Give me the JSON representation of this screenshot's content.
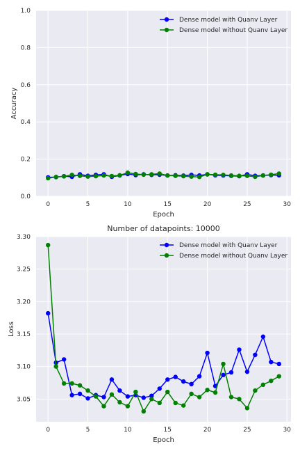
{
  "chart_data": [
    {
      "type": "line",
      "title": "",
      "xlabel": "Epoch",
      "ylabel": "Accuracy",
      "xlim": [
        -1.5,
        30.5
      ],
      "ylim": [
        0,
        1.0
      ],
      "xticks": [
        0,
        5,
        10,
        15,
        20,
        25,
        30
      ],
      "xtick_labels": [
        "0",
        "5",
        "10",
        "15",
        "20",
        "25",
        "30"
      ],
      "yticks": [
        0,
        0.2,
        0.4,
        0.6,
        0.8,
        1.0
      ],
      "ytick_labels": [
        "0.0",
        "0.2",
        "0.4",
        "0.6",
        "0.8",
        "1.0"
      ],
      "grid": true,
      "legend_position": "top-right",
      "x": [
        0,
        1,
        2,
        3,
        4,
        5,
        6,
        7,
        8,
        9,
        10,
        11,
        12,
        13,
        14,
        15,
        16,
        17,
        18,
        19,
        20,
        21,
        22,
        23,
        24,
        25,
        26,
        27,
        28,
        29
      ],
      "series": [
        {
          "name": "Dense model with Quanv Layer",
          "color": "#0000ff",
          "values": [
            0.102,
            0.103,
            0.108,
            0.105,
            0.118,
            0.11,
            0.115,
            0.118,
            0.105,
            0.112,
            0.12,
            0.114,
            0.118,
            0.115,
            0.116,
            0.112,
            0.113,
            0.111,
            0.115,
            0.112,
            0.118,
            0.113,
            0.112,
            0.11,
            0.108,
            0.118,
            0.11,
            0.112,
            0.114,
            0.113
          ]
        },
        {
          "name": "Dense model without Quanv Layer",
          "color": "#008000",
          "values": [
            0.097,
            0.104,
            0.107,
            0.115,
            0.11,
            0.106,
            0.108,
            0.112,
            0.109,
            0.113,
            0.127,
            0.12,
            0.116,
            0.118,
            0.122,
            0.112,
            0.11,
            0.108,
            0.106,
            0.104,
            0.118,
            0.116,
            0.115,
            0.112,
            0.11,
            0.11,
            0.105,
            0.112,
            0.116,
            0.122
          ]
        }
      ]
    },
    {
      "type": "line",
      "title": "Number of datapoints: 10000",
      "xlabel": "Epoch",
      "ylabel": "Loss",
      "xlim": [
        -1.5,
        30.5
      ],
      "ylim": [
        3.015,
        3.3
      ],
      "xticks": [
        0,
        5,
        10,
        15,
        20,
        25,
        30
      ],
      "xtick_labels": [
        "0",
        "5",
        "10",
        "15",
        "20",
        "25",
        "30"
      ],
      "yticks": [
        3.05,
        3.1,
        3.15,
        3.2,
        3.25,
        3.3
      ],
      "ytick_labels": [
        "3.05",
        "3.10",
        "3.15",
        "3.20",
        "3.25",
        "3.30"
      ],
      "grid": true,
      "legend_position": "top-right",
      "x": [
        0,
        1,
        2,
        3,
        4,
        5,
        6,
        7,
        8,
        9,
        10,
        11,
        12,
        13,
        14,
        15,
        16,
        17,
        18,
        19,
        20,
        21,
        22,
        23,
        24,
        25,
        26,
        27,
        28,
        29
      ],
      "series": [
        {
          "name": "Dense model with Quanv Layer",
          "color": "#0000ff",
          "values": [
            3.182,
            3.106,
            3.111,
            3.056,
            3.058,
            3.051,
            3.056,
            3.053,
            3.08,
            3.063,
            3.054,
            3.056,
            3.052,
            3.055,
            3.066,
            3.08,
            3.084,
            3.077,
            3.073,
            3.085,
            3.121,
            3.07,
            3.087,
            3.091,
            3.126,
            3.092,
            3.118,
            3.146,
            3.107,
            3.104
          ]
        },
        {
          "name": "Dense model without Quanv Layer",
          "color": "#008000",
          "values": [
            3.287,
            3.1,
            3.074,
            3.074,
            3.071,
            3.063,
            3.054,
            3.039,
            3.057,
            3.045,
            3.039,
            3.061,
            3.031,
            3.05,
            3.044,
            3.061,
            3.044,
            3.04,
            3.058,
            3.053,
            3.064,
            3.06,
            3.104,
            3.053,
            3.05,
            3.036,
            3.063,
            3.072,
            3.078,
            3.085
          ]
        }
      ]
    }
  ]
}
